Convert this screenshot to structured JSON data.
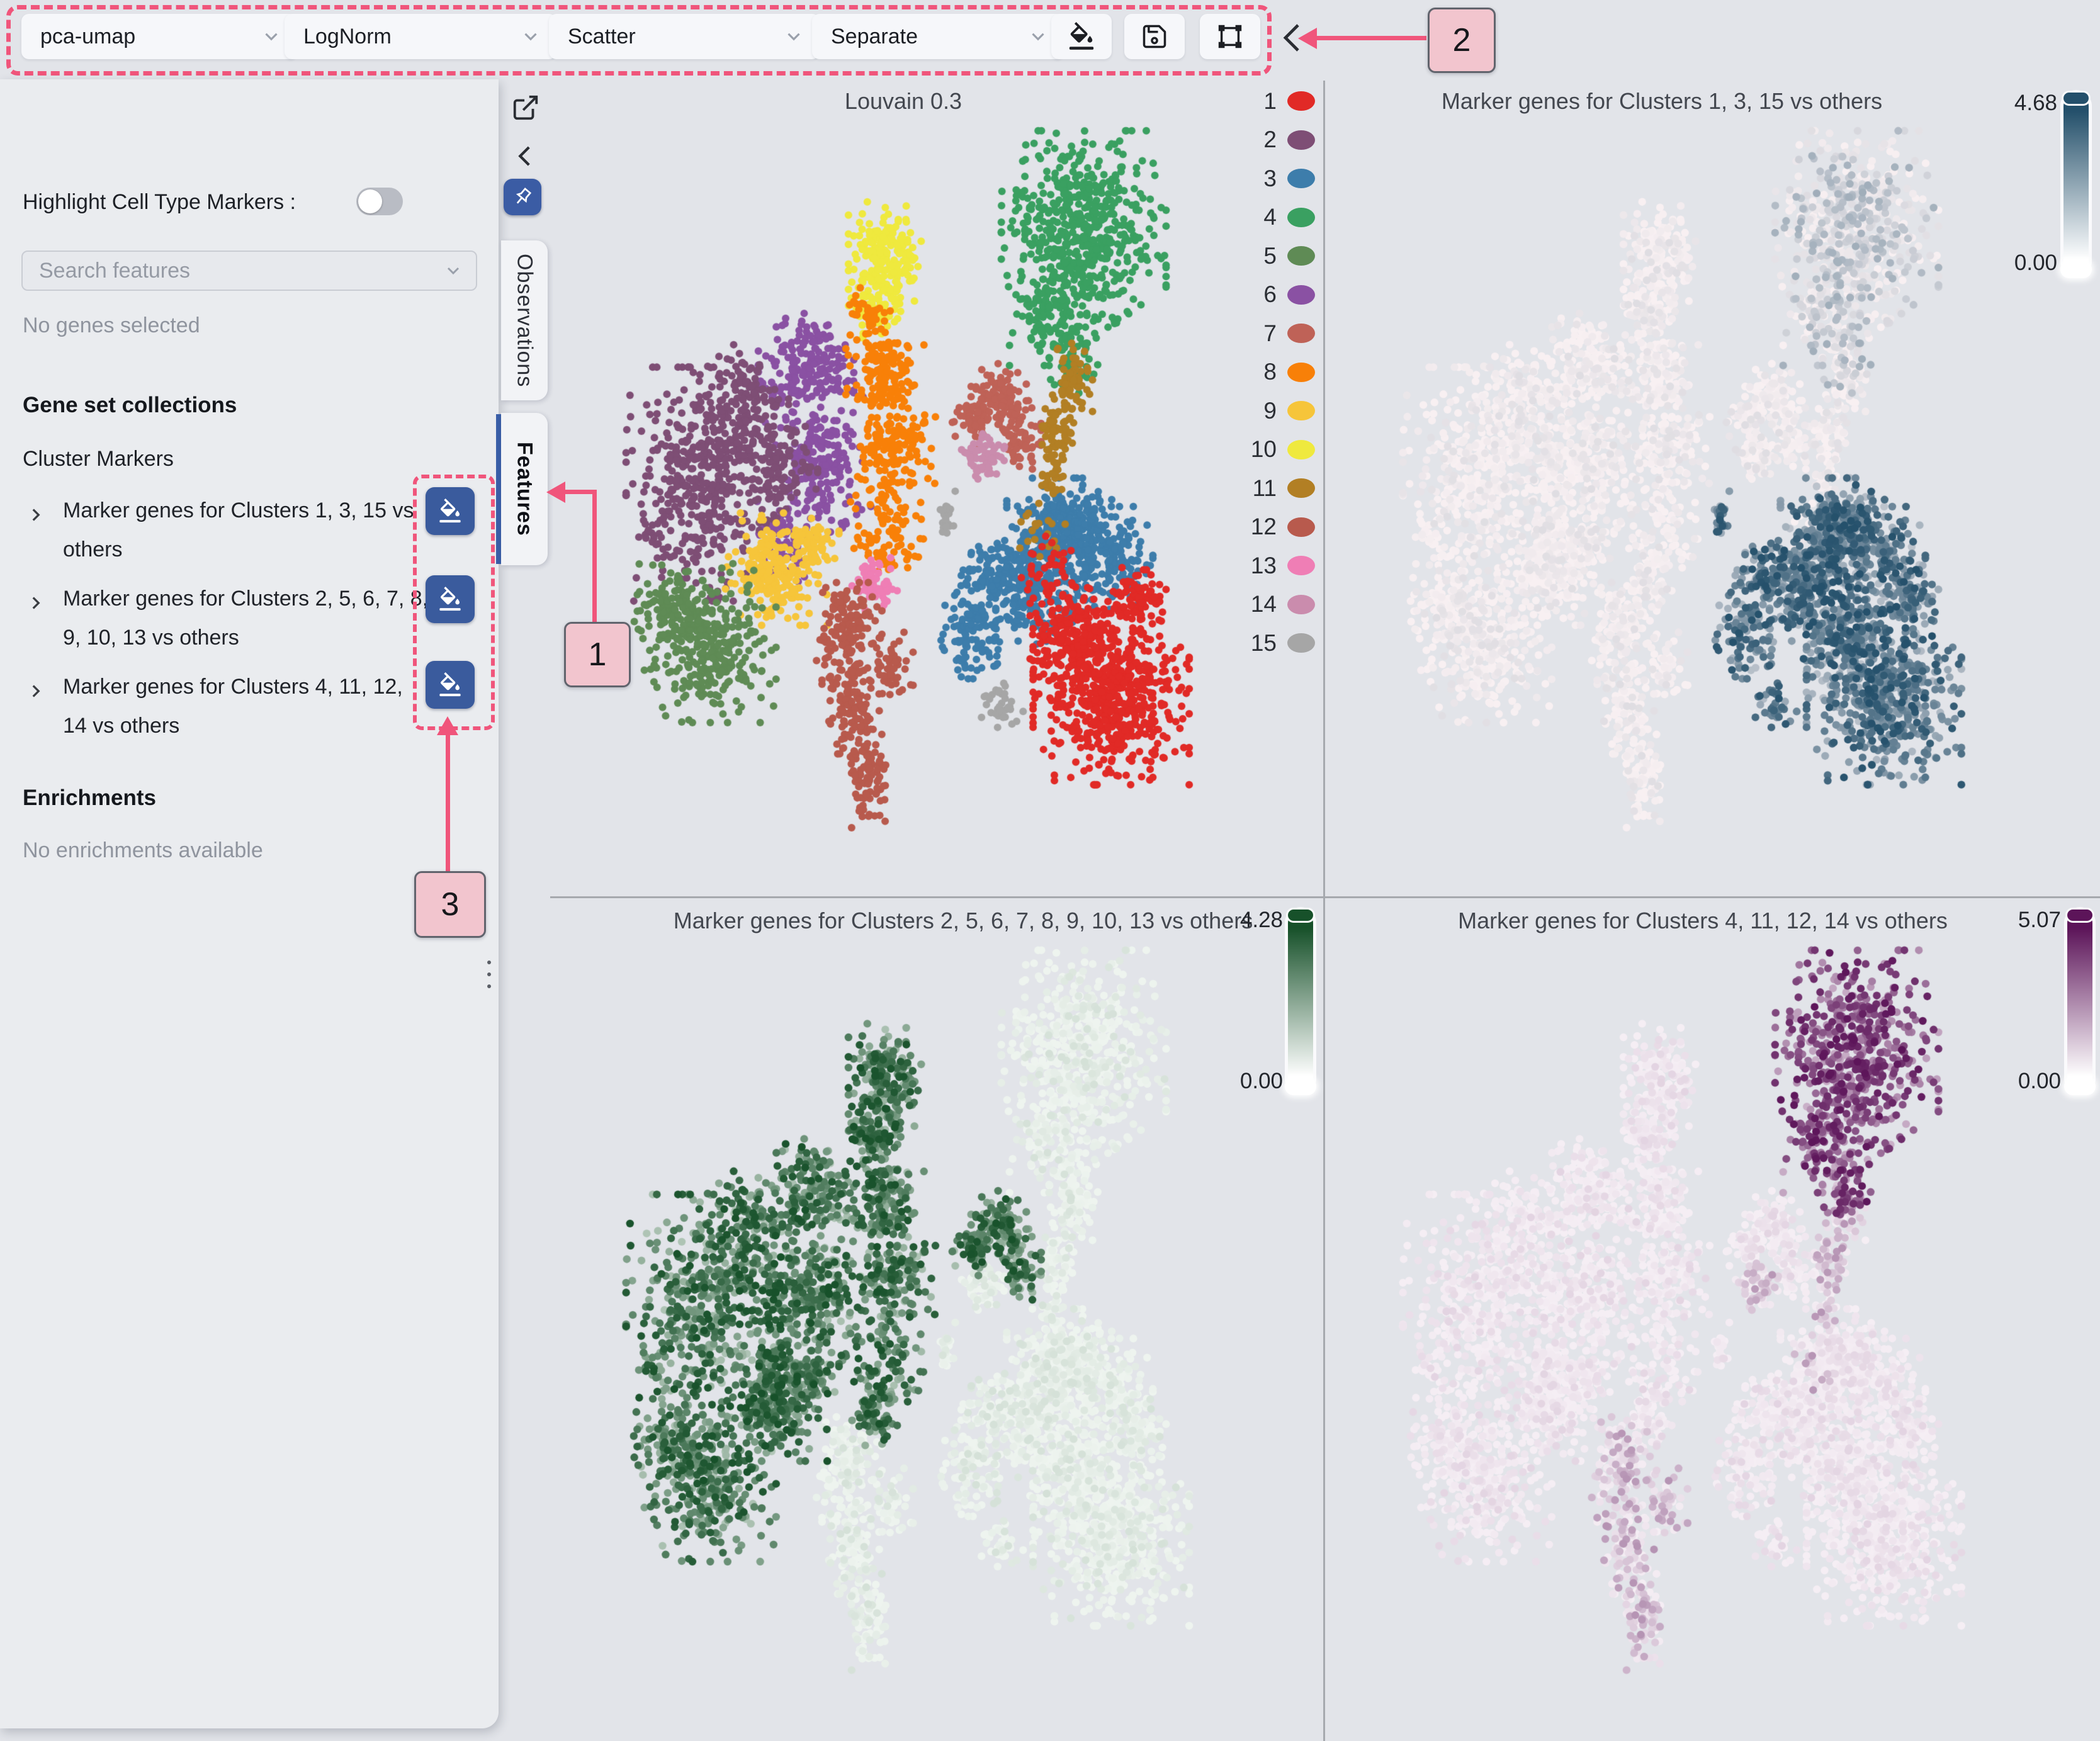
{
  "toolbar": {
    "dropdowns": [
      {
        "value": "pca-umap"
      },
      {
        "value": "LogNorm"
      },
      {
        "value": "Scatter"
      },
      {
        "value": "Separate"
      }
    ],
    "icon_buttons": [
      {
        "name": "fill-color"
      },
      {
        "name": "save"
      },
      {
        "name": "transform"
      }
    ]
  },
  "annotations": {
    "accent_color": "#f0557b",
    "badge_fill": "#f2c5ce",
    "badge_1": "1",
    "badge_2": "2",
    "badge_3": "3"
  },
  "sidebar": {
    "highlight_label": "Highlight Cell Type Markers :",
    "toggle_on": false,
    "search_placeholder": "Search features",
    "no_genes": "No genes selected",
    "gene_set_heading": "Gene set collections",
    "collection_name": "Cluster Markers",
    "marker_items": [
      {
        "label": "Marker genes for Clusters 1, 3, 15 vs others"
      },
      {
        "label": "Marker genes for Clusters 2, 5, 6, 7, 8, 9, 10, 13 vs others"
      },
      {
        "label": "Marker genes for Clusters 4, 11, 12, 14 vs others"
      }
    ],
    "enrichments_heading": "Enrichments",
    "no_enrichments": "No enrichments available"
  },
  "tabs": {
    "observations": "Observations",
    "features": "Features",
    "active": "Features",
    "active_stripe_color": "#3a5fa8"
  },
  "chart_data": {
    "type": "scatter",
    "embedding": "pca-umap",
    "layout": "2x2 separate panels, shared UMAP embedding",
    "panels": [
      {
        "title": "Louvain 0.3",
        "color_by": "cluster",
        "legend_position": "right"
      },
      {
        "title": "Marker genes for Clusters 1, 3, 15 vs others",
        "color_by": "score",
        "colorbar": {
          "max_label": "4.68",
          "min_label": "0.00",
          "dark": "#24506b",
          "zero": "#f8f0f2"
        },
        "high_clusters": [
          1,
          3,
          15
        ],
        "mid_clusters": [
          4
        ]
      },
      {
        "title": "Marker genes for Clusters 2, 5, 6, 7, 8, 9, 10, 13 vs others",
        "color_by": "score",
        "colorbar": {
          "max_label": "4.28",
          "min_label": "0.00",
          "dark": "#17512a",
          "zero": "#eef4ef"
        },
        "high_clusters": [
          2,
          5,
          6,
          7,
          8,
          9,
          10,
          13
        ],
        "mid_clusters": []
      },
      {
        "title": "Marker genes for Clusters 4, 11, 12, 14 vs others",
        "color_by": "score",
        "colorbar": {
          "max_label": "5.07",
          "min_label": "0.00",
          "dark": "#5c1459",
          "zero": "#f5eef4"
        },
        "high_clusters": [
          4
        ],
        "mid_clusters": [
          11,
          12,
          14
        ]
      }
    ],
    "clusters": [
      {
        "id": 1,
        "color": "#e12a26",
        "blobs": [
          [
            0.785,
            0.78,
            0.09,
            0.1,
            620
          ],
          [
            0.73,
            0.7,
            0.05,
            0.05,
            160
          ],
          [
            0.82,
            0.66,
            0.04,
            0.04,
            80
          ],
          [
            0.7,
            0.62,
            0.04,
            0.04,
            40
          ]
        ]
      },
      {
        "id": 2,
        "color": "#7e4e75",
        "blobs": [
          [
            0.185,
            0.5,
            0.085,
            0.125,
            420
          ],
          [
            0.245,
            0.4,
            0.055,
            0.07,
            180
          ],
          [
            0.3,
            0.47,
            0.045,
            0.06,
            100
          ]
        ]
      },
      {
        "id": 3,
        "color": "#3d7dab",
        "blobs": [
          [
            0.715,
            0.555,
            0.065,
            0.05,
            260
          ],
          [
            0.77,
            0.6,
            0.06,
            0.055,
            200
          ],
          [
            0.655,
            0.625,
            0.05,
            0.05,
            160
          ],
          [
            0.585,
            0.7,
            0.038,
            0.05,
            110
          ],
          [
            0.6,
            0.625,
            0.03,
            0.03,
            60
          ],
          [
            0.68,
            0.67,
            0.05,
            0.04,
            60
          ]
        ]
      },
      {
        "id": 4,
        "color": "#3aa061",
        "blobs": [
          [
            0.745,
            0.155,
            0.095,
            0.105,
            560
          ],
          [
            0.7,
            0.27,
            0.05,
            0.055,
            140
          ],
          [
            0.73,
            0.345,
            0.028,
            0.035,
            50
          ]
        ]
      },
      {
        "id": 5,
        "color": "#5f8b55",
        "blobs": [
          [
            0.195,
            0.715,
            0.08,
            0.085,
            360
          ],
          [
            0.14,
            0.66,
            0.04,
            0.04,
            60
          ]
        ]
      },
      {
        "id": 6,
        "color": "#8a51a3",
        "blobs": [
          [
            0.34,
            0.345,
            0.055,
            0.06,
            200
          ],
          [
            0.365,
            0.47,
            0.055,
            0.075,
            200
          ],
          [
            0.305,
            0.575,
            0.035,
            0.045,
            80
          ]
        ]
      },
      {
        "id": 7,
        "color": "#bf6257",
        "blobs": [
          [
            0.625,
            0.385,
            0.035,
            0.04,
            120
          ],
          [
            0.585,
            0.41,
            0.025,
            0.03,
            50
          ],
          [
            0.655,
            0.445,
            0.022,
            0.028,
            50
          ]
        ]
      },
      {
        "id": 8,
        "color": "#f88008",
        "blobs": [
          [
            0.455,
            0.345,
            0.045,
            0.05,
            130
          ],
          [
            0.468,
            0.45,
            0.048,
            0.065,
            160
          ],
          [
            0.458,
            0.565,
            0.042,
            0.05,
            90
          ],
          [
            0.43,
            0.27,
            0.028,
            0.028,
            40
          ]
        ]
      },
      {
        "id": 9,
        "color": "#f6c53a",
        "blobs": [
          [
            0.295,
            0.615,
            0.06,
            0.06,
            230
          ],
          [
            0.35,
            0.58,
            0.03,
            0.03,
            50
          ]
        ]
      },
      {
        "id": 10,
        "color": "#efe93e",
        "blobs": [
          [
            0.455,
            0.195,
            0.042,
            0.065,
            200
          ],
          [
            0.44,
            0.265,
            0.03,
            0.03,
            60
          ]
        ]
      },
      {
        "id": 11,
        "color": "#b27f24",
        "blobs": [
          [
            0.705,
            0.43,
            0.022,
            0.04,
            70
          ],
          [
            0.73,
            0.36,
            0.022,
            0.04,
            60
          ],
          [
            0.7,
            0.49,
            0.018,
            0.025,
            30
          ],
          [
            0.68,
            0.56,
            0.03,
            0.03,
            20
          ]
        ]
      },
      {
        "id": 12,
        "color": "#b85a4d",
        "blobs": [
          [
            0.4,
            0.69,
            0.04,
            0.045,
            120
          ],
          [
            0.405,
            0.79,
            0.033,
            0.065,
            120
          ],
          [
            0.43,
            0.895,
            0.028,
            0.055,
            90
          ],
          [
            0.465,
            0.75,
            0.028,
            0.04,
            50
          ]
        ]
      },
      {
        "id": 13,
        "color": "#ef7eb5",
        "blobs": [
          [
            0.44,
            0.635,
            0.026,
            0.028,
            60
          ]
        ]
      },
      {
        "id": 14,
        "color": "#ca8cad",
        "blobs": [
          [
            0.597,
            0.465,
            0.026,
            0.026,
            60
          ]
        ]
      },
      {
        "id": 15,
        "color": "#a6a6a6",
        "blobs": [
          [
            0.545,
            0.545,
            0.011,
            0.028,
            25
          ],
          [
            0.625,
            0.8,
            0.025,
            0.025,
            35
          ]
        ]
      }
    ]
  }
}
